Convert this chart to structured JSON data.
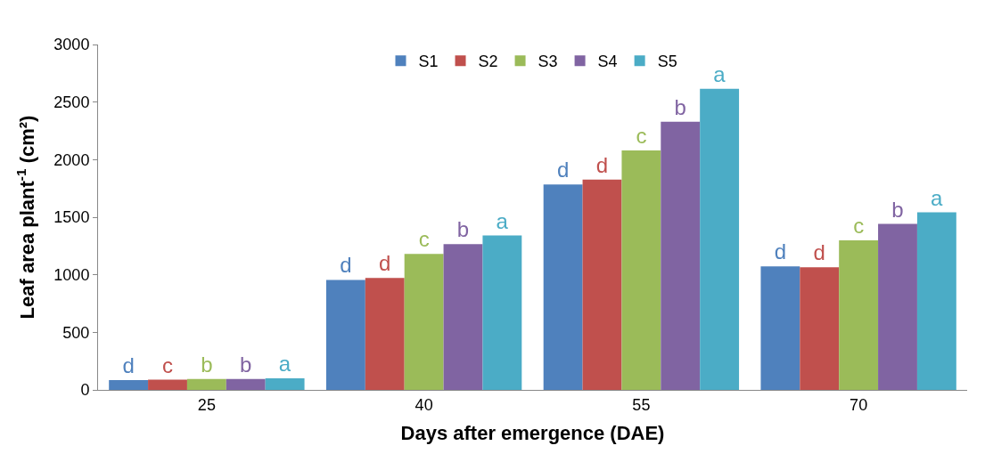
{
  "chart_data": {
    "type": "bar",
    "xlabel": "Days after emergence (DAE)",
    "ylabel": "Leaf area plant$^{-1}$ (cm²)",
    "categories": [
      "25",
      "40",
      "55",
      "70"
    ],
    "ylim": [
      0,
      3000
    ],
    "yticks": [
      0,
      500,
      1000,
      1500,
      2000,
      2500,
      3000
    ],
    "grid": false,
    "legend": "top",
    "series": [
      {
        "name": "S1",
        "color": "#4f81bd",
        "values": [
          85,
          955,
          1785,
          1073
        ],
        "value_labels": [
          "d",
          "d",
          "d",
          "d"
        ]
      },
      {
        "name": "S2",
        "color": "#c0504d",
        "values": [
          88,
          972,
          1827,
          1065
        ],
        "value_labels": [
          "c",
          "d",
          "d",
          "d"
        ]
      },
      {
        "name": "S3",
        "color": "#9bbb59",
        "values": [
          95,
          1182,
          2079,
          1299
        ],
        "value_labels": [
          "b",
          "c",
          "c",
          "c"
        ]
      },
      {
        "name": "S4",
        "color": "#8064a2",
        "values": [
          95,
          1266,
          2330,
          1442
        ],
        "value_labels": [
          "b",
          "b",
          "b",
          "b"
        ]
      },
      {
        "name": "S5",
        "color": "#4bacc6",
        "values": [
          100,
          1341,
          2615,
          1542
        ],
        "value_labels": [
          "a",
          "a",
          "a",
          "a"
        ]
      }
    ]
  }
}
